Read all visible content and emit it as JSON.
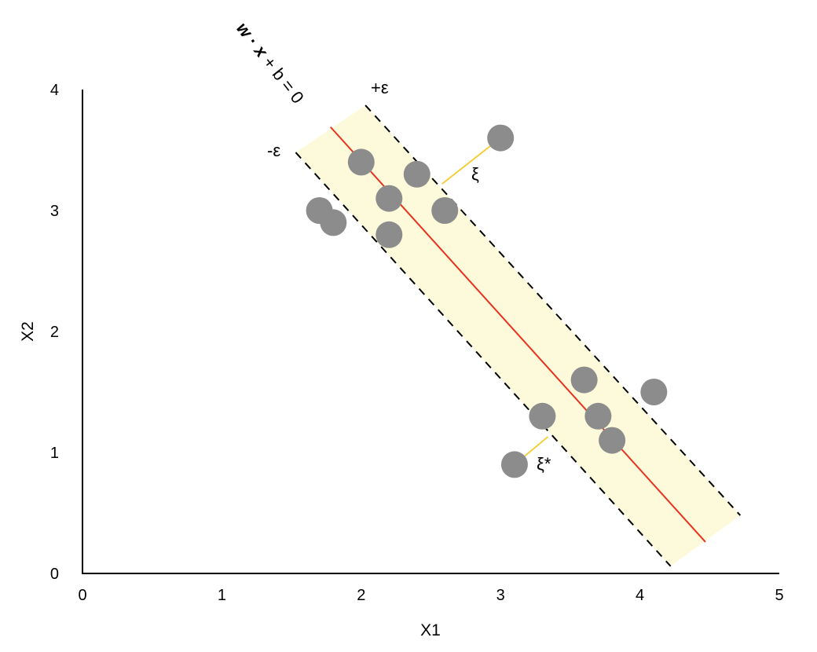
{
  "chart_data": {
    "type": "scatter",
    "xlabel": "X1",
    "ylabel": "X2",
    "xlim": [
      0,
      5
    ],
    "ylim": [
      0,
      4
    ],
    "xticks": [
      "0",
      "1",
      "2",
      "3",
      "4",
      "5"
    ],
    "yticks": [
      "0",
      "1",
      "2",
      "3",
      "4"
    ],
    "grid": false,
    "points": [
      {
        "x": 1.7,
        "y": 3.0
      },
      {
        "x": 1.8,
        "y": 2.9
      },
      {
        "x": 2.0,
        "y": 3.4
      },
      {
        "x": 2.2,
        "y": 3.1
      },
      {
        "x": 2.2,
        "y": 2.8
      },
      {
        "x": 2.4,
        "y": 3.3
      },
      {
        "x": 2.6,
        "y": 3.0
      },
      {
        "x": 3.0,
        "y": 3.6
      },
      {
        "x": 3.3,
        "y": 1.3
      },
      {
        "x": 3.1,
        "y": 0.9
      },
      {
        "x": 3.6,
        "y": 1.6
      },
      {
        "x": 3.7,
        "y": 1.3
      },
      {
        "x": 3.8,
        "y": 1.1
      },
      {
        "x": 4.1,
        "y": 1.5
      }
    ],
    "regression_line": {
      "label_parts": [
        "w",
        " · ",
        "x",
        " + b = 0"
      ],
      "from": {
        "x": 1.78,
        "y": 3.69
      },
      "to": {
        "x": 4.47,
        "y": 0.26
      }
    },
    "epsilon_band": {
      "plus_label": "+ε",
      "minus_label": "-ε",
      "upper_from": {
        "x": 2.03,
        "y": 3.87
      },
      "upper_to": {
        "x": 4.72,
        "y": 0.48
      },
      "lower_from": {
        "x": 1.53,
        "y": 3.48
      },
      "lower_to": {
        "x": 4.22,
        "y": 0.06
      }
    },
    "slacks": [
      {
        "label": "ξ",
        "from": {
          "x": 3.0,
          "y": 3.6
        },
        "to": {
          "x": 2.58,
          "y": 3.22
        }
      },
      {
        "label": "ξ*",
        "from": {
          "x": 3.1,
          "y": 0.9
        },
        "to": {
          "x": 3.34,
          "y": 1.13
        }
      }
    ],
    "colors": {
      "points": "#8c8c8c",
      "regression_line": "#e8321e",
      "band_fill": "#fdfadb",
      "band_edge": "#000000",
      "slack": "#f5cf3c",
      "axes": "#000000"
    }
  }
}
